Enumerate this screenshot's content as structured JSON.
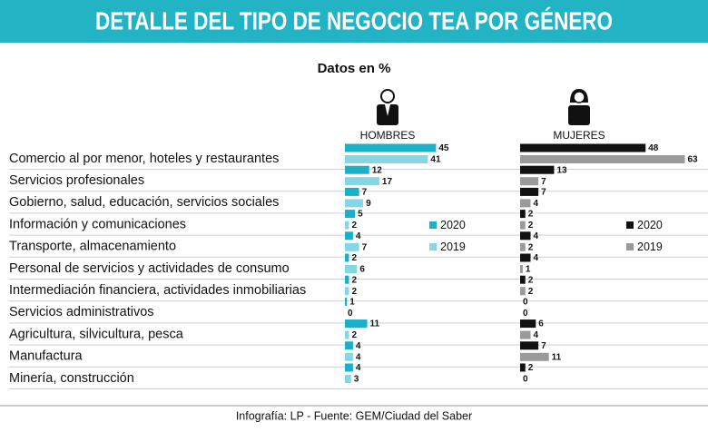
{
  "chart_data": {
    "type": "hbar",
    "title": "DETALLE DEL TIPO DE NEGOCIO TEA POR GÉNERO",
    "subtitle": "Datos en %",
    "source": "Infografía: LP - Fuente: GEM/Ciudad del Saber",
    "categories": [
      "Comercio al por menor, hoteles y restaurantes",
      "Servicios profesionales",
      "Gobierno, salud, educación, servicios sociales",
      "Información y comunicaciones",
      "Transporte, almacenamiento",
      "Personal de servicios y actividades de consumo",
      "Intermediación financiera, actividades inmobiliarias",
      "Servicios administrativos",
      "Agricultura, silvicultura, pesca",
      "Manufactura",
      "Minería, construcción"
    ],
    "panels": [
      {
        "name": "HOMBRES",
        "xlim": [
          0,
          100
        ],
        "series": [
          {
            "name": "2020",
            "color": "#1bb0c8",
            "values": [
              45,
              12,
              7,
              5,
              4,
              2,
              2,
              1,
              11,
              4,
              4
            ]
          },
          {
            "name": "2019",
            "color": "#86d7e6",
            "values": [
              41,
              17,
              9,
              2,
              7,
              6,
              2,
              0,
              2,
              4,
              3
            ]
          }
        ]
      },
      {
        "name": "MUJERES",
        "xlim": [
          0,
          100
        ],
        "series": [
          {
            "name": "2020",
            "color": "#111111",
            "values": [
              48,
              13,
              7,
              2,
              4,
              4,
              2,
              0,
              6,
              7,
              2
            ]
          },
          {
            "name": "2019",
            "color": "#9a9a9a",
            "values": [
              63,
              7,
              4,
              2,
              2,
              1,
              2,
              0,
              4,
              11,
              0
            ]
          }
        ]
      }
    ]
  }
}
